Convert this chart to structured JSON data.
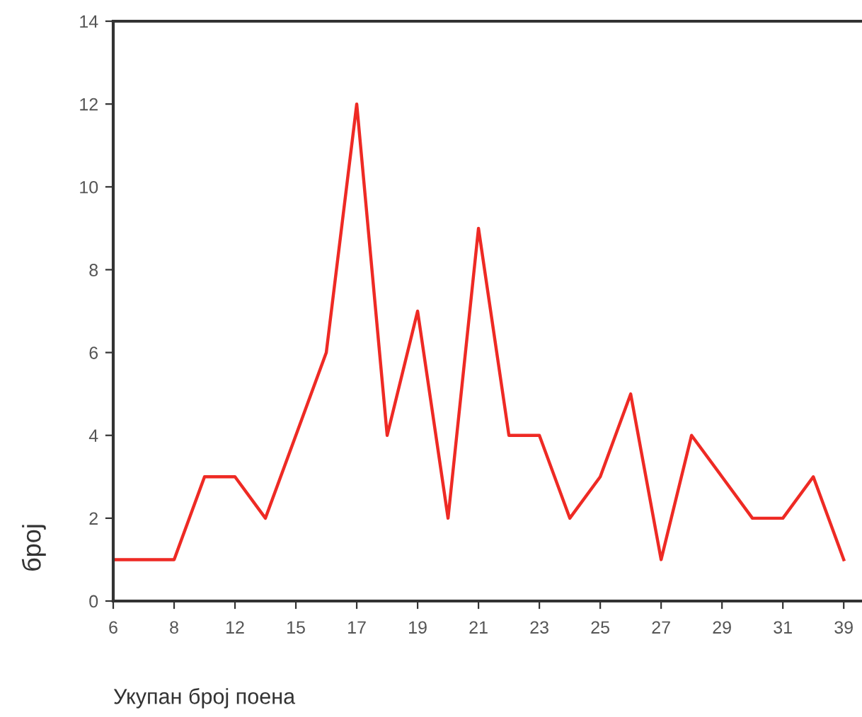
{
  "chart_data": {
    "type": "line",
    "xlabel": "Укупан број поена",
    "ylabel": "број",
    "categories": [
      "6",
      null,
      "8",
      null,
      "12",
      null,
      "15",
      null,
      "17",
      null,
      "19",
      null,
      "21",
      null,
      "23",
      null,
      "25",
      null,
      "27",
      null,
      "29",
      null,
      "31",
      null,
      "39"
    ],
    "series": [
      {
        "color": "#ee2a24",
        "values": [
          1,
          1,
          1,
          3,
          3,
          2,
          4,
          6,
          12,
          4,
          7,
          2,
          9,
          4,
          4,
          2,
          3,
          5,
          1,
          4,
          3,
          2,
          2,
          3,
          1
        ]
      }
    ],
    "ylim": [
      0,
      14
    ],
    "yticks": [
      0,
      2,
      4,
      6,
      8,
      10,
      12,
      14
    ],
    "grid": false,
    "marker": "none",
    "line_style": "solid"
  }
}
